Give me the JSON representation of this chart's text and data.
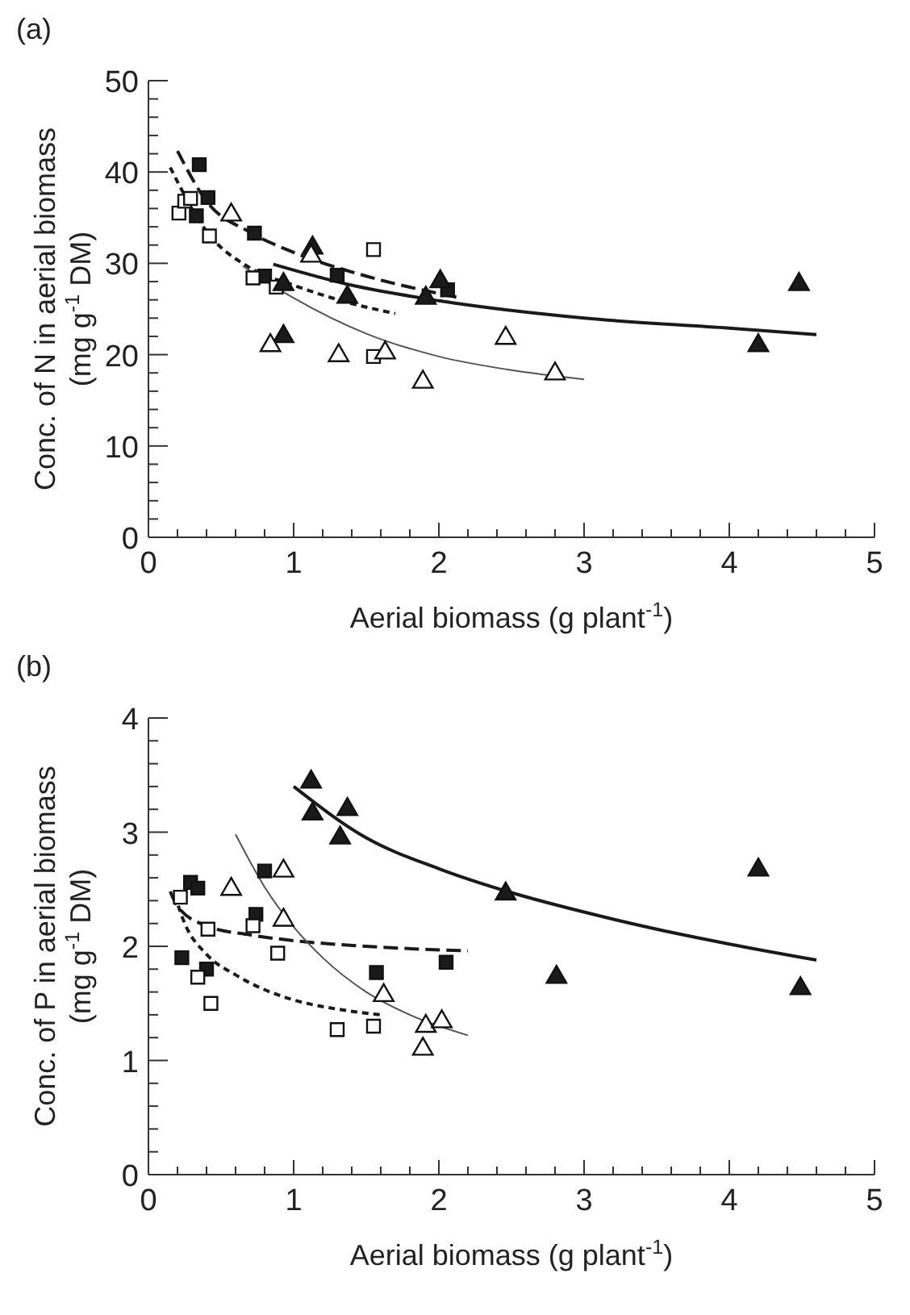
{
  "chart_data": [
    {
      "type": "scatter",
      "title": "(a)",
      "xlabel": "Aerial  biomass  (g plant$^{-1}$)",
      "ylabel": "Conc. of N in aerial biomass\n(mg g$^{-1}$ DM)",
      "xlim": [
        0,
        5
      ],
      "ylim": [
        0,
        50
      ],
      "xticks": [
        0,
        {
          "value": 0.2,
          "label": null
        },
        {
          "value": 0.4,
          "label": null
        },
        {
          "value": 0.6,
          "label": null
        },
        {
          "value": 0.8,
          "label": null
        },
        1,
        {
          "value": 1.2,
          "label": null
        },
        {
          "value": 1.4,
          "label": null
        },
        {
          "value": 1.6,
          "label": null
        },
        {
          "value": 1.8,
          "label": null
        },
        2,
        {
          "value": 2.2,
          "label": null
        },
        {
          "value": 2.4,
          "label": null
        },
        {
          "value": 2.6,
          "label": null
        },
        {
          "value": 2.8,
          "label": null
        },
        3,
        {
          "value": 3.2,
          "label": null
        },
        {
          "value": 3.4,
          "label": null
        },
        {
          "value": 3.6,
          "label": null
        },
        {
          "value": 3.8,
          "label": null
        },
        4,
        {
          "value": 4.2,
          "label": null
        },
        {
          "value": 4.4,
          "label": null
        },
        {
          "value": 4.6,
          "label": null
        },
        {
          "value": 4.8,
          "label": null
        },
        5
      ],
      "yticks": [
        0,
        {
          "value": 2,
          "label": null
        },
        {
          "value": 4,
          "label": null
        },
        {
          "value": 6,
          "label": null
        },
        {
          "value": 8,
          "label": null
        },
        10,
        {
          "value": 12,
          "label": null
        },
        {
          "value": 14,
          "label": null
        },
        {
          "value": 16,
          "label": null
        },
        {
          "value": 18,
          "label": null
        },
        20,
        {
          "value": 22,
          "label": null
        },
        {
          "value": 24,
          "label": null
        },
        {
          "value": 26,
          "label": null
        },
        {
          "value": 28,
          "label": null
        },
        30,
        {
          "value": 32,
          "label": null
        },
        {
          "value": 34,
          "label": null
        },
        {
          "value": 36,
          "label": null
        },
        {
          "value": 38,
          "label": null
        },
        40,
        {
          "value": 42,
          "label": null
        },
        {
          "value": 44,
          "label": null
        },
        {
          "value": 46,
          "label": null
        },
        {
          "value": 48,
          "label": null
        },
        50
      ],
      "grid": false,
      "legend": false,
      "series": [
        {
          "type": "scatter",
          "marker": "square",
          "color": "#1a1a1a",
          "x": [
            0.35,
            0.41,
            0.33,
            0.73,
            0.8,
            1.3,
            2.06
          ],
          "values": [
            40.8,
            37.2,
            35.2,
            33.3,
            28.6,
            28.7,
            27.1
          ]
        },
        {
          "type": "scatter",
          "marker": "square",
          "color": "#ffffff",
          "x": [
            0.21,
            0.25,
            0.29,
            0.42,
            0.72,
            0.88,
            1.55,
            1.55
          ],
          "values": [
            35.5,
            36.8,
            37.1,
            33,
            28.4,
            27.4,
            31.5,
            19.8
          ]
        },
        {
          "type": "scatter",
          "marker": "triangle",
          "color": "#1a1a1a",
          "x": [
            1.13,
            0.93,
            0.93,
            1.37,
            1.91,
            2.01,
            4.2,
            4.48
          ],
          "values": [
            31.7,
            27.7,
            22,
            26.3,
            26.2,
            28,
            21,
            27.7
          ]
        },
        {
          "type": "scatter",
          "marker": "triangle",
          "color": "#ffffff",
          "x": [
            0.57,
            1.12,
            0.84,
            1.31,
            1.63,
            1.89,
            2.46,
            2.8
          ],
          "values": [
            35.3,
            30.8,
            21,
            19.9,
            20.2,
            17,
            21.8,
            17.9
          ]
        },
        {
          "type": "line",
          "marker": "none",
          "line_style": "dashed",
          "color": "#1a1a1a",
          "x": [
            0.2,
            0.4,
            0.7,
            1,
            1.5,
            2.15
          ],
          "values": [
            42.3,
            36.8,
            33.4,
            31.2,
            28.6,
            26.2
          ]
        },
        {
          "type": "line",
          "marker": "none",
          "line_style": "dotted",
          "color": "#1a1a1a",
          "x": [
            0.15,
            0.4,
            0.7,
            1,
            1.4,
            1.7
          ],
          "values": [
            40.5,
            33.5,
            29.5,
            27.6,
            25.6,
            24.5
          ]
        },
        {
          "type": "line",
          "marker": "none",
          "line_style": "solid",
          "color": "#1a1a1a",
          "x": [
            0.86,
            1.4,
            2,
            3,
            4,
            4.6
          ],
          "values": [
            29.9,
            27.6,
            25.9,
            24,
            22.9,
            22.2
          ]
        },
        {
          "type": "line",
          "marker": "none",
          "line_style": "solid",
          "color": "#555555",
          "x": [
            0.65,
            1,
            1.5,
            2,
            2.5,
            3
          ],
          "values": [
            29.7,
            26.2,
            22.3,
            19.8,
            18.3,
            17.3
          ]
        }
      ]
    },
    {
      "type": "scatter",
      "title": "(b)",
      "xlabel": "Aerial  biomass  (g plant$^{-1}$)",
      "ylabel": "Conc. of P in aerial biomass\n(mg g$^{-1}$ DM)",
      "xlim": [
        0,
        5
      ],
      "ylim": [
        0,
        4
      ],
      "xticks": [
        0,
        {
          "value": 0.2,
          "label": null
        },
        {
          "value": 0.4,
          "label": null
        },
        {
          "value": 0.6,
          "label": null
        },
        {
          "value": 0.8,
          "label": null
        },
        1,
        {
          "value": 1.2,
          "label": null
        },
        {
          "value": 1.4,
          "label": null
        },
        {
          "value": 1.6,
          "label": null
        },
        {
          "value": 1.8,
          "label": null
        },
        2,
        {
          "value": 2.2,
          "label": null
        },
        {
          "value": 2.4,
          "label": null
        },
        {
          "value": 2.6,
          "label": null
        },
        {
          "value": 2.8,
          "label": null
        },
        3,
        {
          "value": 3.2,
          "label": null
        },
        {
          "value": 3.4,
          "label": null
        },
        {
          "value": 3.6,
          "label": null
        },
        {
          "value": 3.8,
          "label": null
        },
        4,
        {
          "value": 4.2,
          "label": null
        },
        {
          "value": 4.4,
          "label": null
        },
        {
          "value": 4.6,
          "label": null
        },
        {
          "value": 4.8,
          "label": null
        },
        5
      ],
      "yticks": [
        0,
        {
          "value": 0.2,
          "label": null
        },
        {
          "value": 0.4,
          "label": null
        },
        {
          "value": 0.6,
          "label": null
        },
        {
          "value": 0.8,
          "label": null
        },
        1,
        {
          "value": 1.2,
          "label": null
        },
        {
          "value": 1.4,
          "label": null
        },
        {
          "value": 1.6,
          "label": null
        },
        {
          "value": 1.8,
          "label": null
        },
        2,
        {
          "value": 2.2,
          "label": null
        },
        {
          "value": 2.4,
          "label": null
        },
        {
          "value": 2.6,
          "label": null
        },
        {
          "value": 2.8,
          "label": null
        },
        3,
        {
          "value": 3.2,
          "label": null
        },
        {
          "value": 3.4,
          "label": null
        },
        {
          "value": 3.6,
          "label": null
        },
        {
          "value": 3.8,
          "label": null
        },
        4
      ],
      "grid": false,
      "legend": false,
      "series": [
        {
          "type": "scatter",
          "marker": "square",
          "color": "#1a1a1a",
          "x": [
            0.23,
            0.29,
            0.34,
            0.4,
            0.74,
            0.8,
            1.57,
            2.05
          ],
          "values": [
            1.9,
            2.56,
            2.51,
            1.8,
            2.28,
            2.66,
            1.77,
            1.86
          ]
        },
        {
          "type": "scatter",
          "marker": "square",
          "color": "#ffffff",
          "x": [
            0.22,
            0.34,
            0.41,
            0.43,
            0.72,
            0.89,
            1.3,
            1.55
          ],
          "values": [
            2.43,
            1.73,
            2.15,
            1.5,
            2.18,
            1.94,
            1.27,
            1.3
          ]
        },
        {
          "type": "scatter",
          "marker": "triangle",
          "color": "#1a1a1a",
          "x": [
            1.12,
            1.13,
            1.37,
            1.32,
            2.46,
            2.81,
            4.2,
            4.49
          ],
          "values": [
            3.44,
            3.16,
            3.2,
            2.95,
            2.46,
            1.73,
            2.67,
            1.63
          ]
        },
        {
          "type": "scatter",
          "marker": "triangle",
          "color": "#ffffff",
          "x": [
            0.57,
            0.93,
            0.93,
            1.62,
            1.91,
            2.02,
            1.89
          ],
          "values": [
            2.5,
            2.66,
            2.23,
            1.57,
            1.3,
            1.34,
            1.1
          ]
        },
        {
          "type": "line",
          "marker": "none",
          "line_style": "solid",
          "color": "#1a1a1a",
          "x": [
            1,
            1.5,
            2,
            2.5,
            3,
            3.5,
            4,
            4.6
          ],
          "values": [
            3.4,
            2.95,
            2.68,
            2.47,
            2.3,
            2.15,
            2.02,
            1.88
          ]
        },
        {
          "type": "line",
          "marker": "none",
          "line_style": "dashed",
          "color": "#1a1a1a",
          "x": [
            0.15,
            0.2,
            0.4,
            0.7,
            1,
            1.5,
            2.2
          ],
          "values": [
            2.48,
            2.35,
            2.18,
            2.1,
            2.05,
            2,
            1.96
          ]
        },
        {
          "type": "line",
          "marker": "none",
          "line_style": "dotted",
          "color": "#1a1a1a",
          "x": [
            0.18,
            0.25,
            0.4,
            0.6,
            0.8,
            1,
            1.3,
            1.6
          ],
          "values": [
            2.45,
            2.2,
            1.93,
            1.75,
            1.62,
            1.53,
            1.45,
            1.4
          ]
        },
        {
          "type": "line",
          "marker": "none",
          "line_style": "solid",
          "color": "#555555",
          "x": [
            0.6,
            0.8,
            1,
            1.2,
            1.5,
            1.8,
            2.2
          ],
          "values": [
            2.98,
            2.52,
            2.17,
            1.9,
            1.6,
            1.4,
            1.22
          ]
        }
      ]
    }
  ]
}
